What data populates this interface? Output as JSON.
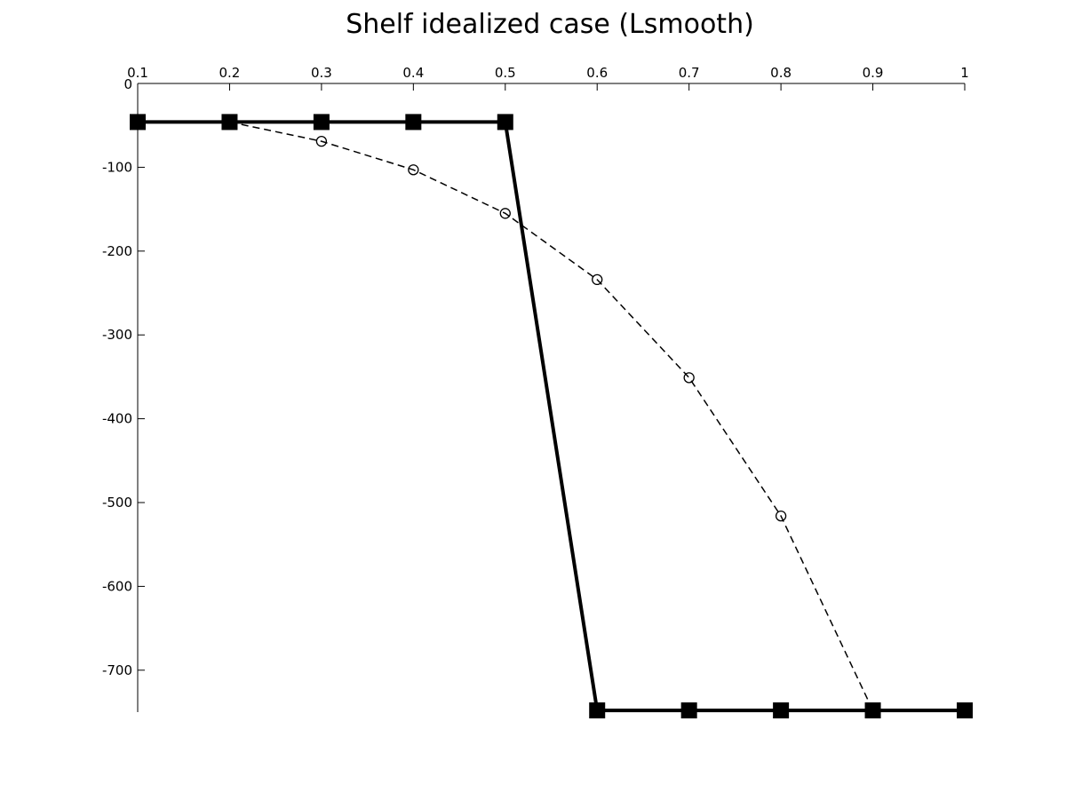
{
  "chart_data": {
    "type": "line",
    "title": "Shelf idealized case (Lsmooth)",
    "xlabel": "",
    "ylabel": "",
    "x_axis_position": "top",
    "xlim": [
      0.1,
      1
    ],
    "ylim": [
      -750,
      0
    ],
    "x_ticks": [
      "0.1",
      "0.2",
      "0.3",
      "0.4",
      "0.5",
      "0.6",
      "0.7",
      "0.8",
      "0.9",
      "1"
    ],
    "y_ticks": [
      "0",
      "-100",
      "-200",
      "-300",
      "-400",
      "-500",
      "-600",
      "-700"
    ],
    "grid": false,
    "legend": "none",
    "series": [
      {
        "style": "solid-thick-square-markers",
        "color": "#000000",
        "x": [
          0.1,
          0.2,
          0.3,
          0.4,
          0.5,
          0.6,
          0.7,
          0.8,
          0.9,
          1.0
        ],
        "y": [
          -46,
          -46,
          -46,
          -46,
          -46,
          -748,
          -748,
          -748,
          -748,
          -748
        ]
      },
      {
        "style": "dashed-circle-markers",
        "color": "#000000",
        "x": [
          0.1,
          0.2,
          0.3,
          0.4,
          0.5,
          0.6,
          0.7,
          0.8,
          0.9
        ],
        "y": [
          -46,
          -46,
          -69,
          -103,
          -155,
          -234,
          -351,
          -516,
          -748
        ]
      }
    ]
  }
}
